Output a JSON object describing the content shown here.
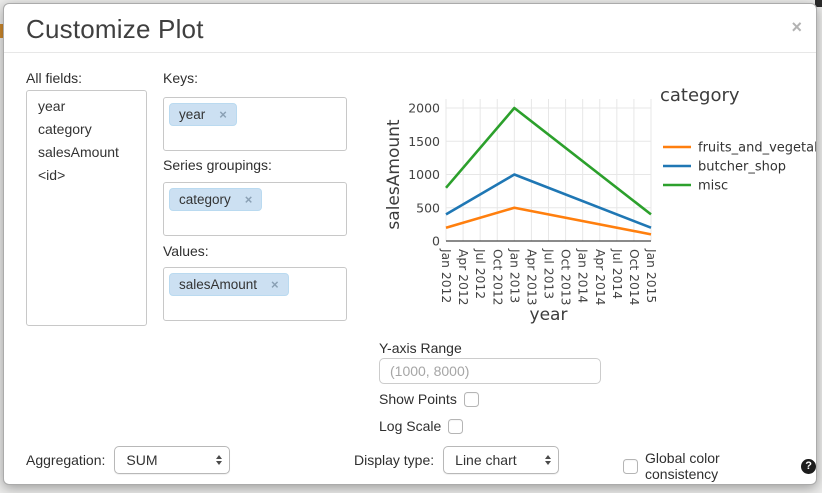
{
  "dialog": {
    "title": "Customize Plot",
    "close_label": "×"
  },
  "fields_panel": {
    "label": "All fields:",
    "items": [
      "year",
      "category",
      "salesAmount",
      "<id>"
    ]
  },
  "mappings": {
    "keys": {
      "label": "Keys:",
      "tags": [
        "year"
      ]
    },
    "series_groupings": {
      "label": "Series groupings:",
      "tags": [
        "category"
      ]
    },
    "values": {
      "label": "Values:",
      "tags": [
        "salesAmount"
      ]
    }
  },
  "chart_data": {
    "type": "line",
    "xlabel": "year",
    "ylabel": "salesAmount",
    "legend_title": "category",
    "legend_position": "right",
    "grid": true,
    "ylim": [
      0,
      2000
    ],
    "y_ticks": [
      0,
      500,
      1000,
      1500,
      2000
    ],
    "x_ticks": [
      "Jan 2012",
      "Apr 2012",
      "Jul 2012",
      "Oct 2012",
      "Jan 2013",
      "Apr 2013",
      "Jul 2013",
      "Oct 2013",
      "Jan 2014",
      "Apr 2014",
      "Jul 2014",
      "Oct 2014",
      "Jan 2015"
    ],
    "series": [
      {
        "name": "fruits_and_vegetables",
        "color": "#ff7f0e",
        "x": [
          "Jan 2012",
          "Jan 2013",
          "Jan 2015"
        ],
        "values": [
          200,
          500,
          100
        ]
      },
      {
        "name": "butcher_shop",
        "color": "#1f77b4",
        "x": [
          "Jan 2012",
          "Jan 2013",
          "Jan 2015"
        ],
        "values": [
          400,
          1000,
          200
        ]
      },
      {
        "name": "misc",
        "color": "#2ca02c",
        "x": [
          "Jan 2012",
          "Jan 2013",
          "Jan 2015"
        ],
        "values": [
          800,
          2000,
          400
        ]
      }
    ],
    "axis_color": "#444444",
    "grid_color": "#e7e7e7",
    "label_color": "#3c3c3c"
  },
  "controls": {
    "y_axis_range": {
      "label": "Y-axis Range",
      "placeholder": "(1000, 8000)",
      "value": ""
    },
    "show_points": {
      "label": "Show Points",
      "checked": false
    },
    "log_scale": {
      "label": "Log Scale",
      "checked": false
    },
    "aggregation": {
      "label": "Aggregation:",
      "value": "SUM"
    },
    "display_type": {
      "label": "Display type:",
      "value": "Line chart"
    },
    "global_color_consistency": {
      "label": "Global color consistency",
      "checked": false,
      "help_icon": "?"
    }
  }
}
